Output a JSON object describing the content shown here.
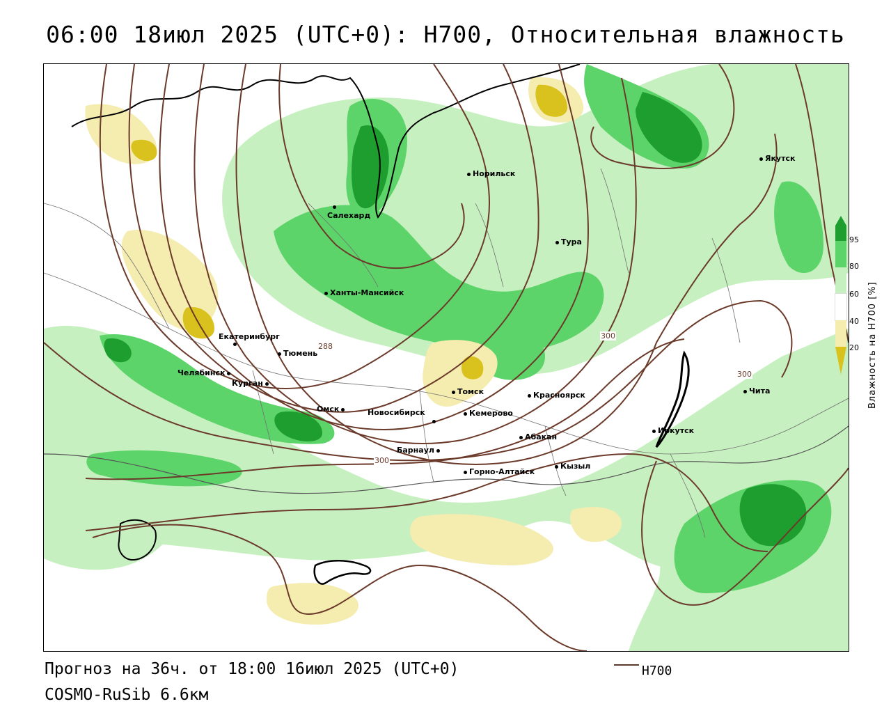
{
  "title": "06:00 18июл 2025 (UTC+0): H700, Относительная влажность",
  "footer": {
    "forecast": "Прогноз на 36ч. от 18:00 16июл 2025 (UTC+0)",
    "model": "COSMO-RuSib 6.6км",
    "legend_label": "H700"
  },
  "colorbar": {
    "title": "Влажность на H700 [%]",
    "ticks": [
      "95",
      "80",
      "60",
      "40",
      "20"
    ],
    "colors": {
      "dry_dark": "#d9c21e",
      "dry_light": "#f5ecb0",
      "neutral": "#ffffff",
      "moist_light": "#c7f0c0",
      "moist_mid": "#5dd46a",
      "moist_dark": "#1e9e2e"
    }
  },
  "contour_color": "#6b3a2a",
  "contour_labels": [
    "288",
    "300",
    "300",
    "300"
  ],
  "cities": [
    "Якутск",
    "Норильск",
    "Салехард",
    "Тура",
    "Ханты-Мансийск",
    "Екатеринбург",
    "Тюмень",
    "Челябинск",
    "Курган",
    "Омск",
    "Новосибирск",
    "Томск",
    "Кемерово",
    "Красноярск",
    "Барнаул",
    "Абакан",
    "Кызыл",
    "Горно-Алтайск",
    "Иркутск",
    "Чита"
  ]
}
